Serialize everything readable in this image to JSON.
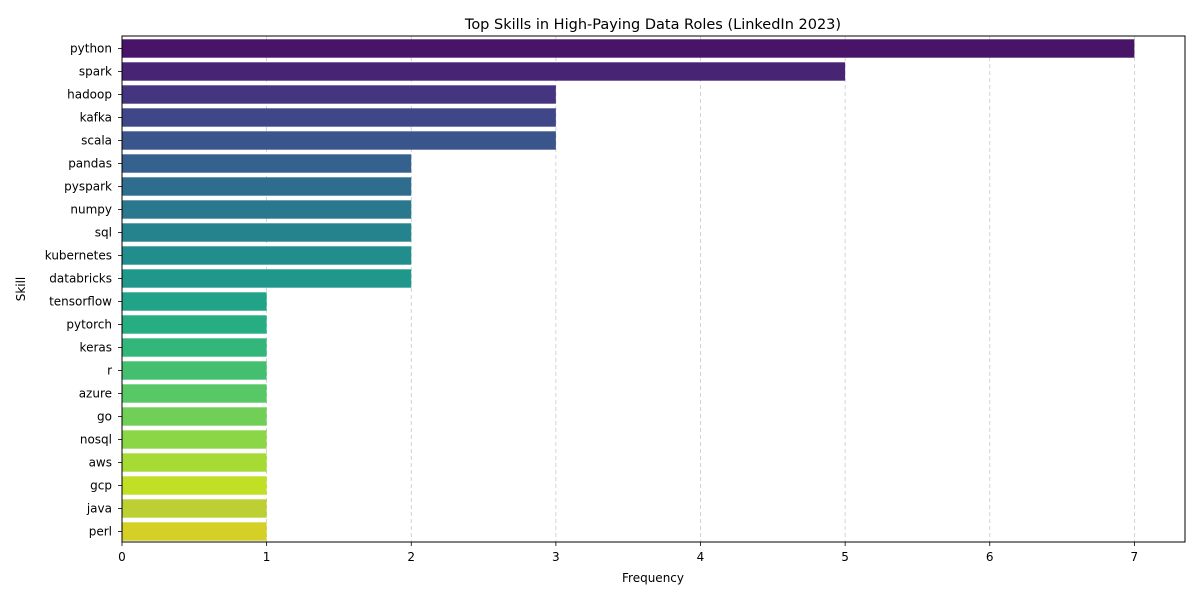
{
  "chart_data": {
    "type": "bar",
    "orientation": "horizontal",
    "title": "Top Skills in High-Paying Data Roles (LinkedIn 2023)",
    "xlabel": "Frequency",
    "ylabel": "Skill",
    "xlim": [
      0,
      7.35
    ],
    "xticks": [
      0,
      1,
      2,
      3,
      4,
      5,
      6,
      7
    ],
    "grid": "x-dashed",
    "colormap": "viridis",
    "categories": [
      "python",
      "spark",
      "hadoop",
      "kafka",
      "scala",
      "pandas",
      "pyspark",
      "numpy",
      "sql",
      "kubernetes",
      "databricks",
      "tensorflow",
      "pytorch",
      "keras",
      "r",
      "azure",
      "go",
      "nosql",
      "aws",
      "gcp",
      "java",
      "perl"
    ],
    "values": [
      7,
      5,
      3,
      3,
      3,
      2,
      2,
      2,
      2,
      2,
      2,
      1,
      1,
      1,
      1,
      1,
      1,
      1,
      1,
      1,
      1,
      1
    ],
    "colors": [
      "#481467",
      "#482474",
      "#453581",
      "#3f4788",
      "#3a548c",
      "#34618d",
      "#2f6d8e",
      "#2a788e",
      "#25838e",
      "#228d8d",
      "#1f988b",
      "#20a386",
      "#26ad81",
      "#32b67a",
      "#44bf70",
      "#58c765",
      "#71cf57",
      "#8bd646",
      "#a6db35",
      "#c0df25",
      "#bdcf32",
      "#d4d026"
    ]
  }
}
